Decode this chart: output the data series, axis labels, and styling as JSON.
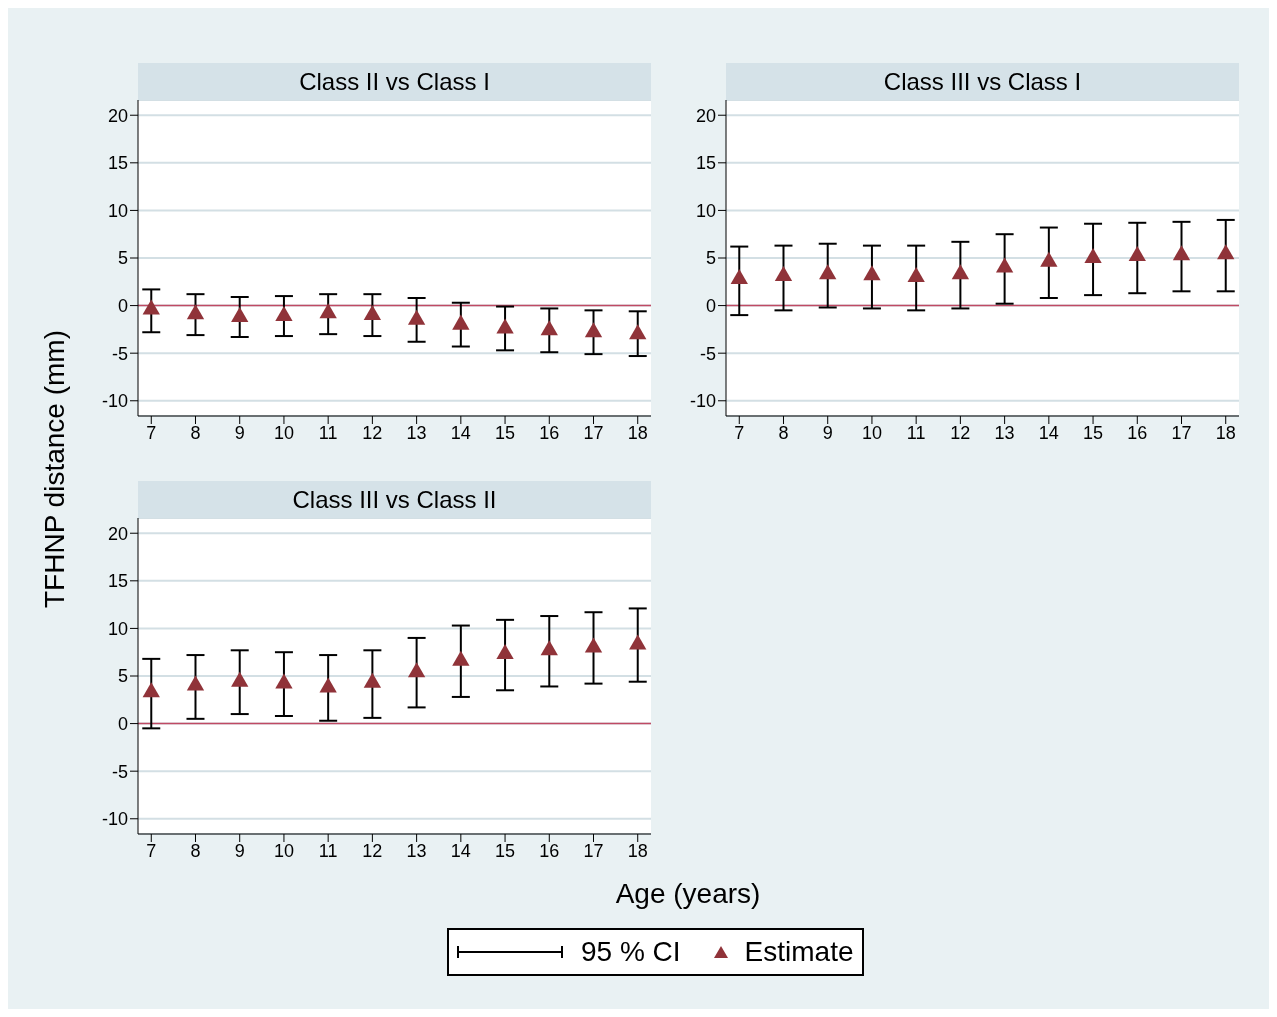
{
  "chart_data": [
    {
      "type": "scatter",
      "title": "Class II vs Class I",
      "x": [
        7,
        8,
        9,
        10,
        11,
        12,
        13,
        14,
        15,
        16,
        17,
        18
      ],
      "xlim": [
        6.7,
        18.3
      ],
      "xticks": [
        7,
        8,
        9,
        10,
        11,
        12,
        13,
        14,
        15,
        16,
        17,
        18
      ],
      "ylim": [
        -11.6,
        21.6
      ],
      "yticks": [
        -10,
        -5,
        0,
        5,
        10,
        15,
        20
      ],
      "grid": "y",
      "marker": "triangle",
      "ref_lines": [
        {
          "axis": "y",
          "value": 0,
          "color": "#c04a64"
        }
      ],
      "series": [
        {
          "color": "#903339",
          "values": [
            -0.4,
            -0.9,
            -1.2,
            -1.1,
            -0.8,
            -1.0,
            -1.5,
            -2.0,
            -2.4,
            -2.6,
            -2.8,
            -3.0
          ],
          "errors": [
            [
              -2.8,
              1.7
            ],
            [
              -3.1,
              1.2
            ],
            [
              -3.3,
              0.9
            ],
            [
              -3.2,
              1.0
            ],
            [
              -3.0,
              1.2
            ],
            [
              -3.2,
              1.2
            ],
            [
              -3.8,
              0.8
            ],
            [
              -4.3,
              0.3
            ],
            [
              -4.7,
              -0.1
            ],
            [
              -4.9,
              -0.3
            ],
            [
              -5.1,
              -0.5
            ],
            [
              -5.3,
              -0.6
            ]
          ]
        }
      ]
    },
    {
      "type": "scatter",
      "title": "Class III vs Class I",
      "x": [
        7,
        8,
        9,
        10,
        11,
        12,
        13,
        14,
        15,
        16,
        17,
        18
      ],
      "xlim": [
        6.7,
        18.3
      ],
      "xticks": [
        7,
        8,
        9,
        10,
        11,
        12,
        13,
        14,
        15,
        16,
        17,
        18
      ],
      "ylim": [
        -11.6,
        21.6
      ],
      "yticks": [
        -10,
        -5,
        0,
        5,
        10,
        15,
        20
      ],
      "grid": "y",
      "marker": "triangle",
      "ref_lines": [
        {
          "axis": "y",
          "value": 0,
          "color": "#c04a64"
        }
      ],
      "series": [
        {
          "color": "#903339",
          "values": [
            2.8,
            3.1,
            3.3,
            3.2,
            3.0,
            3.3,
            4.0,
            4.6,
            5.0,
            5.2,
            5.3,
            5.4
          ],
          "errors": [
            [
              -1.0,
              6.2
            ],
            [
              -0.5,
              6.3
            ],
            [
              -0.2,
              6.5
            ],
            [
              -0.3,
              6.3
            ],
            [
              -0.5,
              6.3
            ],
            [
              -0.3,
              6.7
            ],
            [
              0.2,
              7.5
            ],
            [
              0.8,
              8.2
            ],
            [
              1.1,
              8.6
            ],
            [
              1.3,
              8.7
            ],
            [
              1.5,
              8.8
            ],
            [
              1.5,
              9.0
            ]
          ]
        }
      ]
    },
    {
      "type": "scatter",
      "title": "Class III vs Class II",
      "xlabel": "Age (years)",
      "ylabel": "TFHNP distance (mm)",
      "legend": "bottom",
      "annotations": [
        "95 % CI"
      ],
      "x": [
        7,
        8,
        9,
        10,
        11,
        12,
        13,
        14,
        15,
        16,
        17,
        18
      ],
      "xlim": [
        6.7,
        18.3
      ],
      "xticks": [
        7,
        8,
        9,
        10,
        11,
        12,
        13,
        14,
        15,
        16,
        17,
        18
      ],
      "ylim": [
        -11.6,
        21.6
      ],
      "yticks": [
        -10,
        -5,
        0,
        5,
        10,
        15,
        20
      ],
      "grid": "y",
      "marker": "triangle",
      "ref_lines": [
        {
          "axis": "y",
          "value": 0,
          "color": "#c04a64"
        }
      ],
      "series": [
        {
          "name": "Estimate",
          "color": "#903339",
          "values": [
            3.3,
            4.0,
            4.4,
            4.2,
            3.8,
            4.3,
            5.4,
            6.6,
            7.3,
            7.7,
            8.0,
            8.3
          ],
          "errors": [
            [
              -0.5,
              6.8
            ],
            [
              0.5,
              7.2
            ],
            [
              1.0,
              7.7
            ],
            [
              0.8,
              7.5
            ],
            [
              0.3,
              7.2
            ],
            [
              0.6,
              7.7
            ],
            [
              1.7,
              9.0
            ],
            [
              2.8,
              10.3
            ],
            [
              3.5,
              10.9
            ],
            [
              3.9,
              11.3
            ],
            [
              4.2,
              11.7
            ],
            [
              4.4,
              12.1
            ]
          ]
        }
      ]
    }
  ]
}
